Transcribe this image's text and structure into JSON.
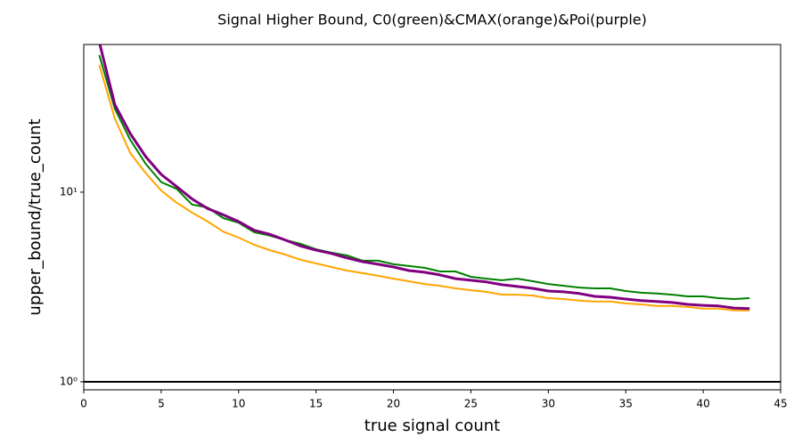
{
  "chart_data": {
    "type": "line",
    "title": "Signal Higher Bound, C0(green)&CMAX(orange)&Poi(purple)",
    "x_label": "true signal count",
    "y_label": "upper_bound/true_count",
    "log_y": true,
    "x": [
      1,
      2,
      3,
      4,
      5,
      6,
      7,
      8,
      9,
      10,
      11,
      12,
      13,
      14,
      15,
      16,
      17,
      18,
      19,
      20,
      21,
      22,
      23,
      24,
      25,
      26,
      27,
      28,
      29,
      30,
      31,
      32,
      33,
      34,
      35,
      36,
      37,
      38,
      39,
      40,
      41,
      42,
      43
    ],
    "series": [
      {
        "color": "#008000",
        "linewidth": 2,
        "values": [
          52.9,
          27.6,
          18.9,
          14.1,
          11.3,
          10.4,
          8.6,
          8.3,
          7.3,
          6.9,
          6.15,
          5.9,
          5.6,
          5.34,
          5.0,
          4.8,
          4.64,
          4.35,
          4.35,
          4.17,
          4.08,
          3.99,
          3.82,
          3.82,
          3.58,
          3.5,
          3.43,
          3.5,
          3.39,
          3.28,
          3.21,
          3.14,
          3.11,
          3.11,
          3.01,
          2.95,
          2.92,
          2.88,
          2.82,
          2.82,
          2.76,
          2.73,
          2.76
        ]
      },
      {
        "color": "#ffa500",
        "linewidth": 2,
        "values": [
          46.9,
          24.5,
          16.1,
          12.6,
          10.2,
          8.8,
          7.8,
          7.0,
          6.2,
          5.76,
          5.28,
          4.95,
          4.69,
          4.4,
          4.21,
          4.03,
          3.86,
          3.74,
          3.62,
          3.5,
          3.39,
          3.28,
          3.21,
          3.11,
          3.04,
          2.98,
          2.88,
          2.88,
          2.85,
          2.76,
          2.73,
          2.68,
          2.65,
          2.65,
          2.59,
          2.56,
          2.51,
          2.51,
          2.48,
          2.43,
          2.43,
          2.38,
          2.38
        ]
      },
      {
        "color": "#800080",
        "linewidth": 3,
        "values": [
          62,
          29,
          20.4,
          15.4,
          12.4,
          10.7,
          9.2,
          8.2,
          7.6,
          7.0,
          6.3,
          6.0,
          5.6,
          5.2,
          4.95,
          4.75,
          4.5,
          4.3,
          4.17,
          4.03,
          3.86,
          3.78,
          3.66,
          3.5,
          3.43,
          3.36,
          3.25,
          3.18,
          3.11,
          3.01,
          2.98,
          2.92,
          2.82,
          2.79,
          2.73,
          2.68,
          2.65,
          2.62,
          2.56,
          2.53,
          2.51,
          2.45,
          2.43
        ]
      }
    ],
    "hline": {
      "value": 1,
      "color": "#000000"
    },
    "xlim": [
      0,
      45
    ],
    "xticks": [
      0,
      5,
      10,
      15,
      20,
      25,
      30,
      35,
      40,
      45
    ],
    "ylim": [
      0.907,
      60.1
    ],
    "yticks": [
      {
        "value": 1,
        "label": "10⁰"
      },
      {
        "value": 10,
        "label": "10¹"
      }
    ]
  }
}
